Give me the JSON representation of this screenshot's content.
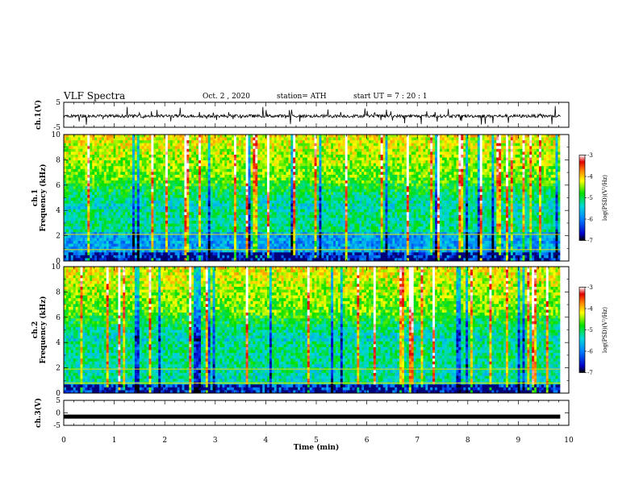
{
  "header": {
    "title": "VLF Spectra",
    "date": "Oct. 2 , 2020",
    "station": "station= ATH",
    "start": "start UT = 7 : 20 : 1"
  },
  "chart_data": [
    {
      "type": "line",
      "panel": "ch1-waveform",
      "ylabel": "ch.1(V)",
      "ylim": [
        -5,
        5
      ],
      "yticks": [
        "5",
        "-5"
      ],
      "xlim": [
        0,
        10
      ],
      "description_values": {
        "mean_level": -0.5,
        "typical_range": [
          -2,
          1
        ]
      }
    },
    {
      "type": "heatmap",
      "panel": "ch1-spectrogram",
      "ylabel": "ch.1\nFrequency (kHz)",
      "ylim": [
        0,
        10
      ],
      "yticks": [
        "0",
        "2",
        "4",
        "6",
        "8",
        "10"
      ],
      "xlim": [
        0,
        10
      ],
      "colorbar": {
        "label": "log(PSD)(V²/Hz)",
        "range": [
          -7,
          -3
        ],
        "ticks": [
          "-3",
          "-4",
          "-5",
          "-6",
          "-7"
        ]
      }
    },
    {
      "type": "heatmap",
      "panel": "ch2-spectrogram",
      "ylabel": "ch.2\nFrequency (kHz)",
      "ylim": [
        0,
        10
      ],
      "yticks": [
        "0",
        "2",
        "4",
        "6",
        "8",
        "10"
      ],
      "xlim": [
        0,
        10
      ],
      "colorbar": {
        "label": "log(PSD)(V²/Hz)",
        "range": [
          -7,
          -3
        ],
        "ticks": [
          "-3",
          "-4",
          "-5",
          "-6",
          "-7"
        ]
      }
    },
    {
      "type": "line",
      "panel": "ch3-waveform",
      "ylabel": "ch.3(V)",
      "ylim": [
        -5,
        5
      ],
      "yticks": [
        "5",
        "0",
        "-5"
      ],
      "xlim": [
        0,
        10
      ],
      "description_values": {
        "mean_level": -1.5
      }
    }
  ],
  "xaxis": {
    "label": "Time (min)",
    "ticks": [
      "0",
      "1",
      "2",
      "3",
      "4",
      "5",
      "6",
      "7",
      "8",
      "9",
      "10"
    ],
    "data_end": 9.83
  }
}
